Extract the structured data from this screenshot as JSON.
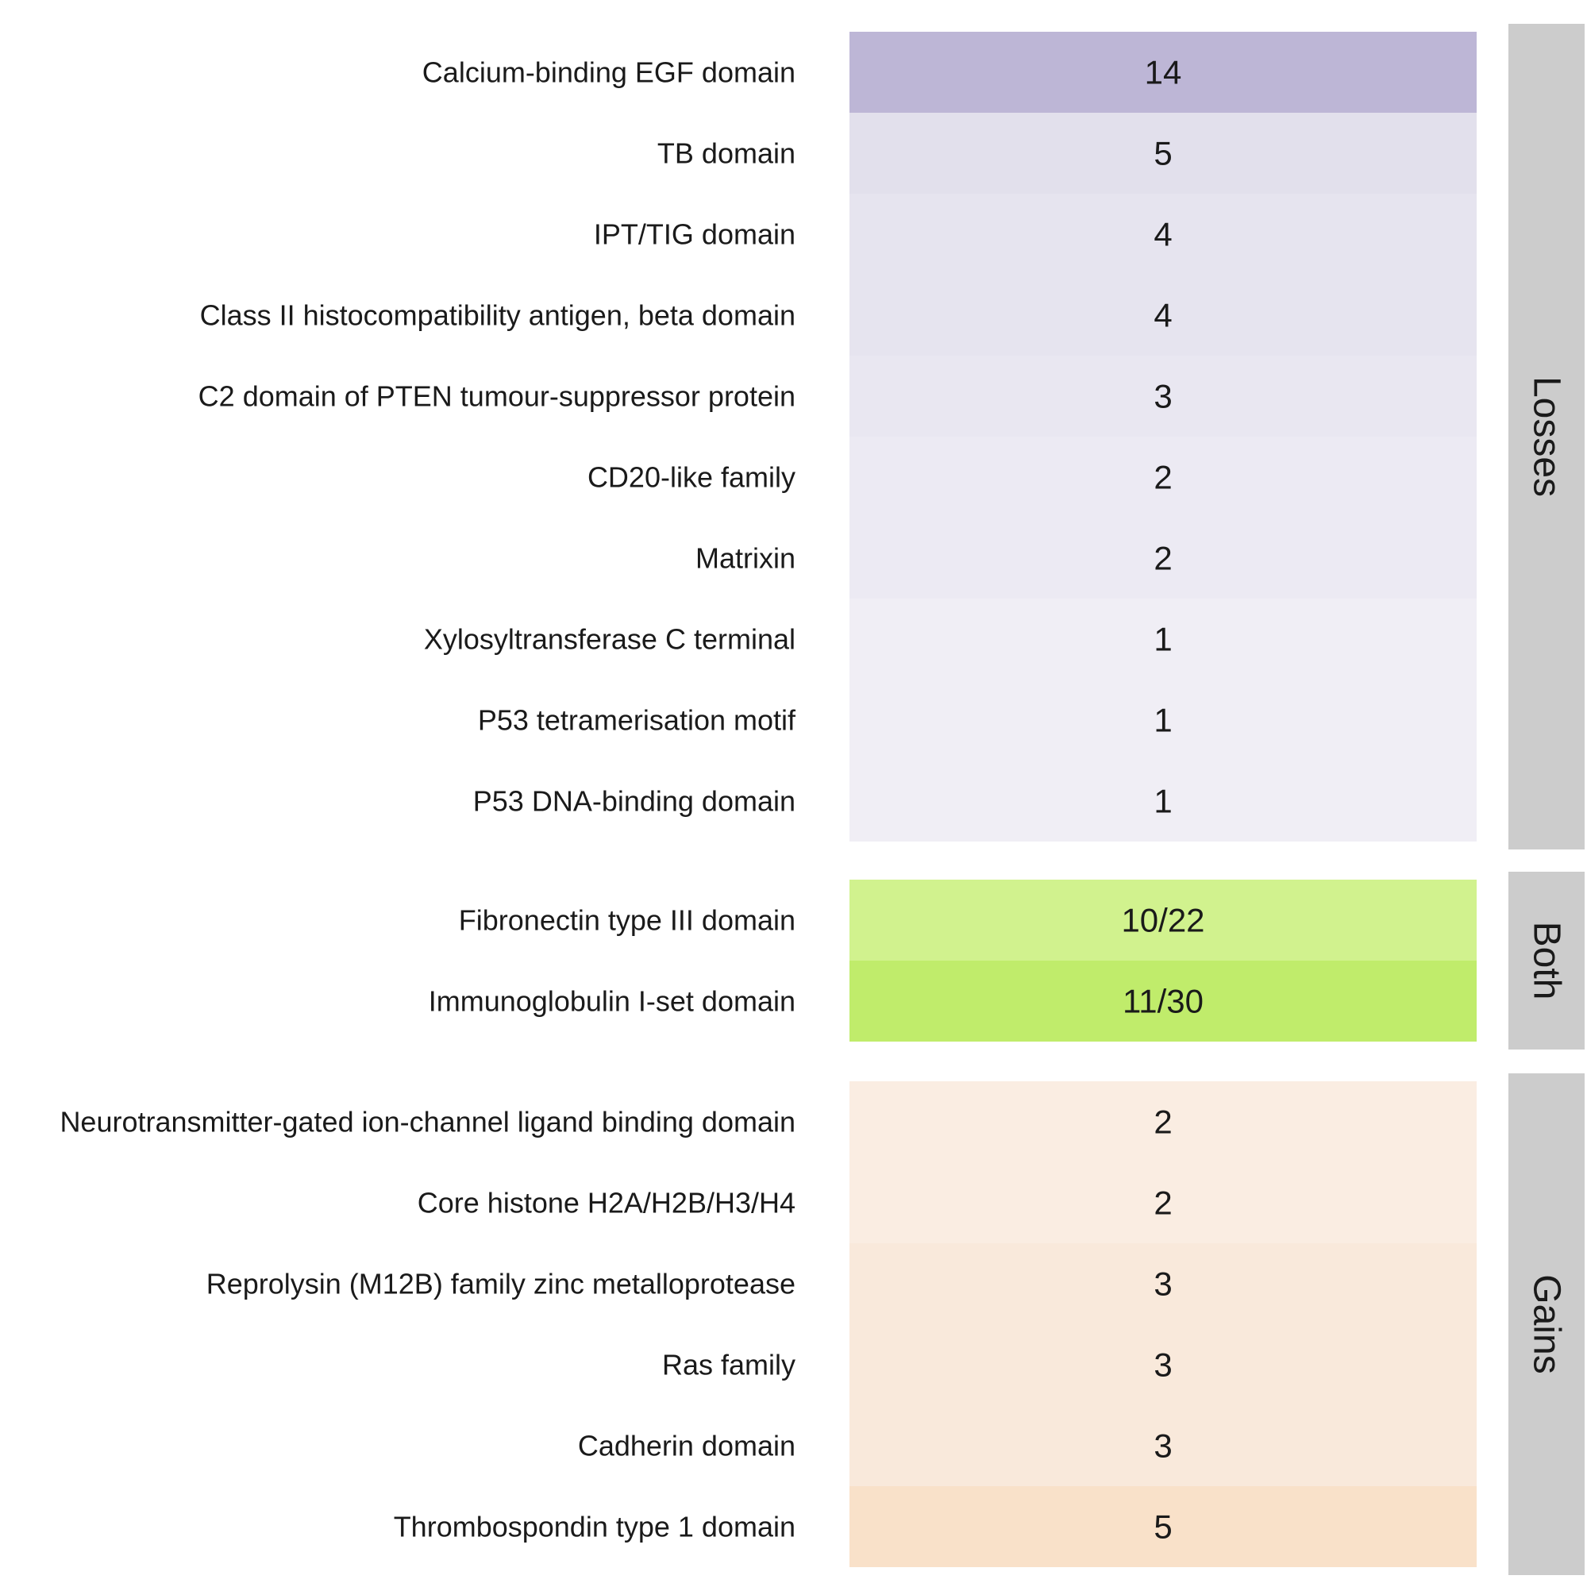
{
  "chart_data": {
    "type": "heatmap",
    "layout": "faceted rows with single value column",
    "facets": [
      {
        "name": "Losses",
        "rows": [
          {
            "label": "Calcium-binding EGF domain",
            "value_text": "14",
            "color": "#BDB6D6"
          },
          {
            "label": "TB domain",
            "value_text": "5",
            "color": "#E2E0EC"
          },
          {
            "label": "IPT/TIG domain",
            "value_text": "4",
            "color": "#E6E4EF"
          },
          {
            "label": "Class II histocompatibility antigen, beta domain",
            "value_text": "4",
            "color": "#E6E4EF"
          },
          {
            "label": "C2 domain of PTEN tumour-suppressor protein",
            "value_text": "3",
            "color": "#E9E7F1"
          },
          {
            "label": "CD20-like family",
            "value_text": "2",
            "color": "#ECEAF3"
          },
          {
            "label": "Matrixin",
            "value_text": "2",
            "color": "#ECEAF3"
          },
          {
            "label": "Xylosyltransferase C terminal",
            "value_text": "1",
            "color": "#F0EEF5"
          },
          {
            "label": "P53 tetramerisation motif",
            "value_text": "1",
            "color": "#F0EEF5"
          },
          {
            "label": "P53 DNA-binding domain",
            "value_text": "1",
            "color": "#F0EEF5"
          }
        ]
      },
      {
        "name": "Both",
        "rows": [
          {
            "label": "Fibronectin type III domain",
            "value_text": "10/22",
            "color": "#D1F28E"
          },
          {
            "label": "Immunoglobulin I-set domain",
            "value_text": "11/30",
            "color": "#C0EC6B"
          }
        ]
      },
      {
        "name": "Gains",
        "rows": [
          {
            "label": "Neurotransmitter-gated ion-channel ligand binding domain",
            "value_text": "2",
            "color": "#FAEDE2"
          },
          {
            "label": "Core histone H2A/H2B/H3/H4",
            "value_text": "2",
            "color": "#FAEDE2"
          },
          {
            "label": "Reprolysin (M12B) family zinc metalloprotease",
            "value_text": "3",
            "color": "#F9E9DB"
          },
          {
            "label": "Ras family",
            "value_text": "3",
            "color": "#F9E9DB"
          },
          {
            "label": "Cadherin domain",
            "value_text": "3",
            "color": "#F9E9DB"
          },
          {
            "label": "Thrombospondin type 1 domain",
            "value_text": "5",
            "color": "#F9E1C9"
          }
        ]
      }
    ],
    "strip_color": "#CCCCCC"
  }
}
